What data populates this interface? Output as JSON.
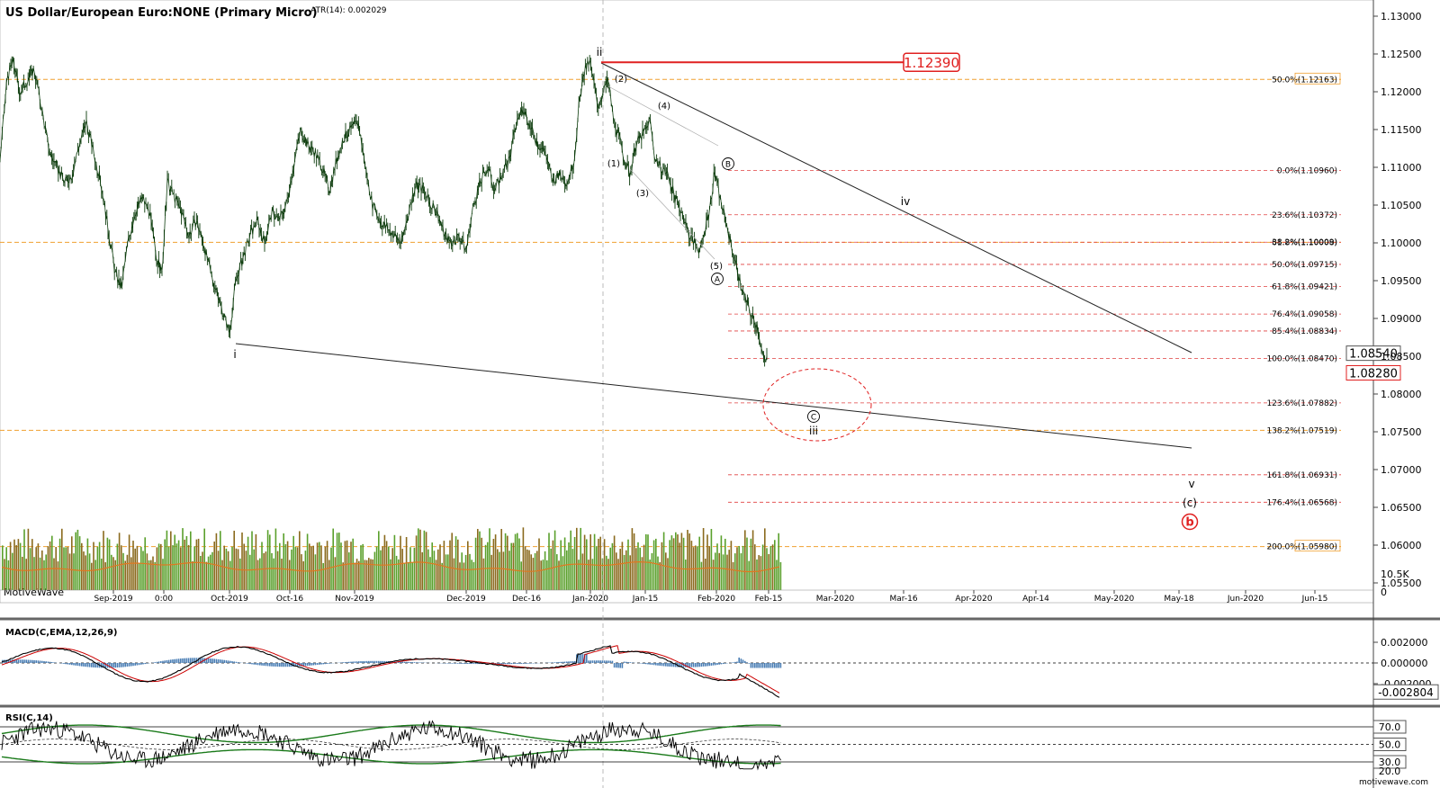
{
  "header": {
    "title": "US Dollar/European Euro:NONE (Primary Micro)",
    "atr": "ATR(14): 0.002029",
    "watermark": "MotiveWave",
    "site": "motivewave.com"
  },
  "chart_data": [
    {
      "type": "line",
      "name": "price",
      "ylim": [
        1.055,
        1.132
      ],
      "y_ticks": [
        "1.13000",
        "1.12500",
        "1.12000",
        "1.11500",
        "1.11000",
        "1.10500",
        "1.10000",
        "1.09500",
        "1.09000",
        "1.08500",
        "1.08000",
        "1.07500",
        "1.07000",
        "1.06500",
        "1.06000",
        "1.05500"
      ],
      "x_ticks": [
        "Sep-2019",
        "0:00",
        "Oct-2019",
        "Oct-16",
        "Nov-2019",
        "Dec-2019",
        "Dec-16",
        "Jan-2020",
        "Jan-15",
        "Feb-2020",
        "Feb-15",
        "Mar-2020",
        "Mar-16",
        "Apr-2020",
        "Apr-14",
        "May-2020",
        "May-18",
        "Jun-2020",
        "Jun-15"
      ],
      "price_path": [
        [
          0,
          1.111
        ],
        [
          8,
          1.122
        ],
        [
          15,
          1.124
        ],
        [
          22,
          1.12
        ],
        [
          30,
          1.1215
        ],
        [
          38,
          1.123
        ],
        [
          46,
          1.118
        ],
        [
          55,
          1.112
        ],
        [
          63,
          1.11
        ],
        [
          72,
          1.108
        ],
        [
          80,
          1.109
        ],
        [
          88,
          1.113
        ],
        [
          96,
          1.116
        ],
        [
          104,
          1.112
        ],
        [
          112,
          1.108
        ],
        [
          120,
          1.102
        ],
        [
          128,
          1.096
        ],
        [
          135,
          1.094
        ],
        [
          142,
          1.1
        ],
        [
          150,
          1.104
        ],
        [
          158,
          1.106
        ],
        [
          166,
          1.104
        ],
        [
          174,
          1.098
        ],
        [
          180,
          1.096
        ],
        [
          186,
          1.108
        ],
        [
          194,
          1.106
        ],
        [
          202,
          1.104
        ],
        [
          210,
          1.101
        ],
        [
          218,
          1.103
        ],
        [
          226,
          1.1
        ],
        [
          234,
          1.096
        ],
        [
          242,
          1.093
        ],
        [
          250,
          1.09
        ],
        [
          255,
          1.088
        ],
        [
          262,
          1.095
        ],
        [
          270,
          1.098
        ],
        [
          278,
          1.101
        ],
        [
          286,
          1.103
        ],
        [
          294,
          1.1
        ],
        [
          302,
          1.104
        ],
        [
          310,
          1.103
        ],
        [
          318,
          1.105
        ],
        [
          326,
          1.11
        ],
        [
          334,
          1.115
        ],
        [
          342,
          1.113
        ],
        [
          350,
          1.112
        ],
        [
          358,
          1.11
        ],
        [
          366,
          1.107
        ],
        [
          374,
          1.111
        ],
        [
          382,
          1.114
        ],
        [
          390,
          1.115
        ],
        [
          398,
          1.116
        ],
        [
          406,
          1.11
        ],
        [
          414,
          1.105
        ],
        [
          422,
          1.103
        ],
        [
          430,
          1.102
        ],
        [
          438,
          1.101
        ],
        [
          446,
          1.1
        ],
        [
          454,
          1.104
        ],
        [
          462,
          1.108
        ],
        [
          470,
          1.107
        ],
        [
          478,
          1.105
        ],
        [
          486,
          1.104
        ],
        [
          494,
          1.101
        ],
        [
          502,
          1.1
        ],
        [
          510,
          1.101
        ],
        [
          518,
          1.099
        ],
        [
          526,
          1.105
        ],
        [
          534,
          1.108
        ],
        [
          542,
          1.11
        ],
        [
          550,
          1.107
        ],
        [
          558,
          1.109
        ],
        [
          566,
          1.111
        ],
        [
          574,
          1.116
        ],
        [
          582,
          1.118
        ],
        [
          590,
          1.115
        ],
        [
          598,
          1.113
        ],
        [
          606,
          1.112
        ],
        [
          614,
          1.108
        ],
        [
          622,
          1.109
        ],
        [
          630,
          1.108
        ],
        [
          638,
          1.111
        ],
        [
          644,
          1.119
        ],
        [
          650,
          1.123
        ],
        [
          655,
          1.1239
        ],
        [
          660,
          1.121
        ],
        [
          665,
          1.118
        ],
        [
          670,
          1.12
        ],
        [
          676,
          1.1215
        ],
        [
          682,
          1.116
        ],
        [
          688,
          1.114
        ],
        [
          694,
          1.111
        ],
        [
          700,
          1.109
        ],
        [
          706,
          1.113
        ],
        [
          712,
          1.114
        ],
        [
          718,
          1.115
        ],
        [
          722,
          1.1165
        ],
        [
          728,
          1.111
        ],
        [
          735,
          1.11
        ],
        [
          742,
          1.109
        ],
        [
          750,
          1.106
        ],
        [
          758,
          1.104
        ],
        [
          766,
          1.101
        ],
        [
          772,
          1.1
        ],
        [
          778,
          1.099
        ],
        [
          782,
          1.101
        ],
        [
          788,
          1.104
        ],
        [
          794,
          1.1095
        ],
        [
          800,
          1.106
        ],
        [
          806,
          1.103
        ],
        [
          812,
          1.1
        ],
        [
          818,
          1.097
        ],
        [
          824,
          1.094
        ],
        [
          830,
          1.092
        ],
        [
          836,
          1.09
        ],
        [
          842,
          1.089
        ],
        [
          846,
          1.086
        ],
        [
          850,
          1.084
        ],
        [
          853,
          1.085
        ]
      ]
    },
    {
      "type": "bar",
      "name": "volume",
      "y_ticks": [
        "10.5K",
        "0"
      ]
    },
    {
      "type": "line",
      "name": "macd",
      "title": "MACD(C,EMA,12,26,9)",
      "y_ticks": [
        "0.002000",
        "0.000000",
        "-0.002000"
      ]
    },
    {
      "type": "line",
      "name": "rsi",
      "title": "RSI(C,14)",
      "y_ticks": [
        "70.0",
        "50.0",
        "30.0",
        "20.0"
      ]
    }
  ],
  "price_tags": {
    "current": "1.08280",
    "upper": "1.08540",
    "high_label": "1.12390",
    "volume_current": "10.5K",
    "volume_zero": "0",
    "macd_current": "-0.002804",
    "rsi_70": "70.0",
    "rsi_50": "50.0",
    "rsi_30": "30.0",
    "rsi_20": "20.0"
  },
  "fib_levels": [
    {
      "label": "50.0%(1.12163)",
      "price": 1.12163,
      "color": "#f0a030",
      "style": "orange"
    },
    {
      "label": "0.0%(1.10960)",
      "price": 1.1096,
      "color": "#e04040"
    },
    {
      "label": "23.6%(1.10372)",
      "price": 1.10372,
      "color": "#e04040"
    },
    {
      "label": "61.8%(1.10008)",
      "price": 1.10008,
      "color": "#f0a030",
      "style": "orange"
    },
    {
      "label": "38.2%(1.10009)",
      "price": 1.10009,
      "color": "#e04040"
    },
    {
      "label": "50.0%(1.09715)",
      "price": 1.09715,
      "color": "#e04040"
    },
    {
      "label": "61.8%(1.09421)",
      "price": 1.09421,
      "color": "#e04040"
    },
    {
      "label": "76.4%(1.09058)",
      "price": 1.09058,
      "color": "#e04040"
    },
    {
      "label": "85.4%(1.08834)",
      "price": 1.08834,
      "color": "#e04040"
    },
    {
      "label": "100.0%(1.08470)",
      "price": 1.0847,
      "color": "#e04040"
    },
    {
      "label": "123.6%(1.07882)",
      "price": 1.07882,
      "color": "#e04040"
    },
    {
      "label": "138.2%(1.07519)",
      "price": 1.07519,
      "color": "#f0a030",
      "style": "orange"
    },
    {
      "label": "161.8%(1.06931)",
      "price": 1.06931,
      "color": "#e04040"
    },
    {
      "label": "176.4%(1.06568)",
      "price": 1.06568,
      "color": "#e04040"
    },
    {
      "label": "200.0%(1.05980)",
      "price": 1.0598,
      "color": "#f0a030",
      "style": "orange"
    }
  ],
  "wave_labels": {
    "i": "i",
    "ii": "ii",
    "iii": "iii",
    "iv": "iv",
    "v": "v",
    "w1": "(1)",
    "w2": "(2)",
    "w3": "(3)",
    "w4": "(4)",
    "w5": "(5)",
    "A": "A",
    "B": "B",
    "C": "C",
    "c": "(c)",
    "b": "b"
  },
  "colors": {
    "price": "#0b3b0b",
    "fib": "#e04040",
    "orange": "#f0a030",
    "volume_up": "#5aa02c",
    "volume_down": "#8a6a1e",
    "macd_hist": "#4a7eb5",
    "macd_line": "#000000",
    "signal_line": "#cc0000",
    "rsi_band": "#1a7a1a",
    "accent_red": "#e02020"
  }
}
